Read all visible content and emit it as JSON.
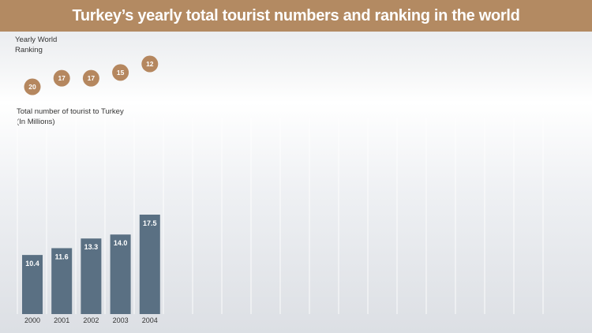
{
  "title": "Turkey’s yearly total tourist numbers and ranking in the world",
  "ranking_label_line1": "Yearly World",
  "ranking_label_line2": "Ranking",
  "tourists_label_line1": "Total number of tourist to Turkey",
  "tourists_label_line2": "(In Millions)",
  "colors": {
    "header": "#b38a62",
    "bar": "#5a7083",
    "badge": "#b5875f"
  },
  "chart_data": [
    {
      "type": "scatter",
      "title": "",
      "ylabel": "Yearly World Ranking",
      "categories": [
        "2000",
        "2001",
        "2002",
        "2003",
        "2004"
      ],
      "values": [
        20,
        17,
        17,
        15,
        12
      ]
    },
    {
      "type": "bar",
      "title": "",
      "ylabel": "Total number of tourist to Turkey (In Millions)",
      "categories": [
        "2000",
        "2001",
        "2002",
        "2003",
        "2004"
      ],
      "values": [
        10.4,
        11.6,
        13.3,
        14.0,
        17.5
      ],
      "value_labels": [
        "10.4",
        "11.6",
        "13.3",
        "14.0",
        "17.5"
      ],
      "ylim": [
        0,
        17.5
      ]
    }
  ]
}
